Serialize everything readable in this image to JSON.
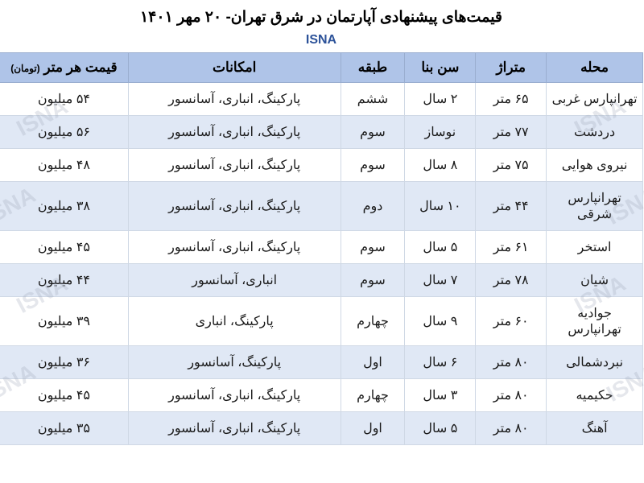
{
  "title": "قیمت‌های پیشنهادی آپارتمان در شرق تهران- ۲۰ مهر ۱۴۰۱",
  "source": "ISNA",
  "watermark_text": "ISNA",
  "table": {
    "type": "table",
    "header_bg": "#afc4e8",
    "row_even_bg": "#ffffff",
    "row_odd_bg": "#e0e8f5",
    "border_color": "#cfd8e5",
    "header_border_color": "#9aaed0",
    "header_fontsize": 17,
    "cell_fontsize": 16,
    "columns": [
      {
        "key": "area",
        "label": "محله",
        "width_pct": 15
      },
      {
        "key": "size",
        "label": "متراژ",
        "width_pct": 11
      },
      {
        "key": "age",
        "label": "سن بنا",
        "width_pct": 11
      },
      {
        "key": "floor",
        "label": "طبقه",
        "width_pct": 10
      },
      {
        "key": "amenities",
        "label": "امکانات",
        "width_pct": 33
      },
      {
        "key": "price",
        "label": "قیمت هر متر",
        "price_unit": "(تومان)",
        "width_pct": 20
      }
    ],
    "rows": [
      {
        "area": "تهرانپارس غربی",
        "size": "۶۵ متر",
        "age": "۲ سال",
        "floor": "ششم",
        "amenities": "پارکینگ، انباری، آسانسور",
        "price": "۵۴ میلیون"
      },
      {
        "area": "دردشت",
        "size": "۷۷ متر",
        "age": "نوساز",
        "floor": "سوم",
        "amenities": "پارکینگ، انباری، آسانسور",
        "price": "۵۶ میلیون"
      },
      {
        "area": "نیروی هوایی",
        "size": "۷۵ متر",
        "age": "۸ سال",
        "floor": "سوم",
        "amenities": "پارکینگ، انباری، آسانسور",
        "price": "۴۸ میلیون"
      },
      {
        "area": "تهرانپارس شرقی",
        "size": "۴۴ متر",
        "age": "۱۰ سال",
        "floor": "دوم",
        "amenities": "پارکینگ، انباری، آسانسور",
        "price": "۳۸ میلیون"
      },
      {
        "area": "استخر",
        "size": "۶۱ متر",
        "age": "۵ سال",
        "floor": "سوم",
        "amenities": "پارکینگ، انباری، آسانسور",
        "price": "۴۵ میلیون"
      },
      {
        "area": "شیان",
        "size": "۷۸ متر",
        "age": "۷ سال",
        "floor": "سوم",
        "amenities": "انباری، آسانسور",
        "price": "۴۴ میلیون"
      },
      {
        "area": "جوادیه تهرانپارس",
        "size": "۶۰ متر",
        "age": "۹ سال",
        "floor": "چهارم",
        "amenities": "پارکینگ، انباری",
        "price": "۳۹ میلیون"
      },
      {
        "area": "نبردشمالی",
        "size": "۸۰ متر",
        "age": "۶ سال",
        "floor": "اول",
        "amenities": "پارکینگ، آسانسور",
        "price": "۳۶ میلیون"
      },
      {
        "area": "حکیمیه",
        "size": "۸۰ متر",
        "age": "۳ سال",
        "floor": "چهارم",
        "amenities": "پارکینگ، انباری، آسانسور",
        "price": "۴۵ میلیون"
      },
      {
        "area": "آهنگ",
        "size": "۸۰ متر",
        "age": "۵ سال",
        "floor": "اول",
        "amenities": "پارکینگ، انباری، آسانسور",
        "price": "۳۵ میلیون"
      }
    ]
  }
}
